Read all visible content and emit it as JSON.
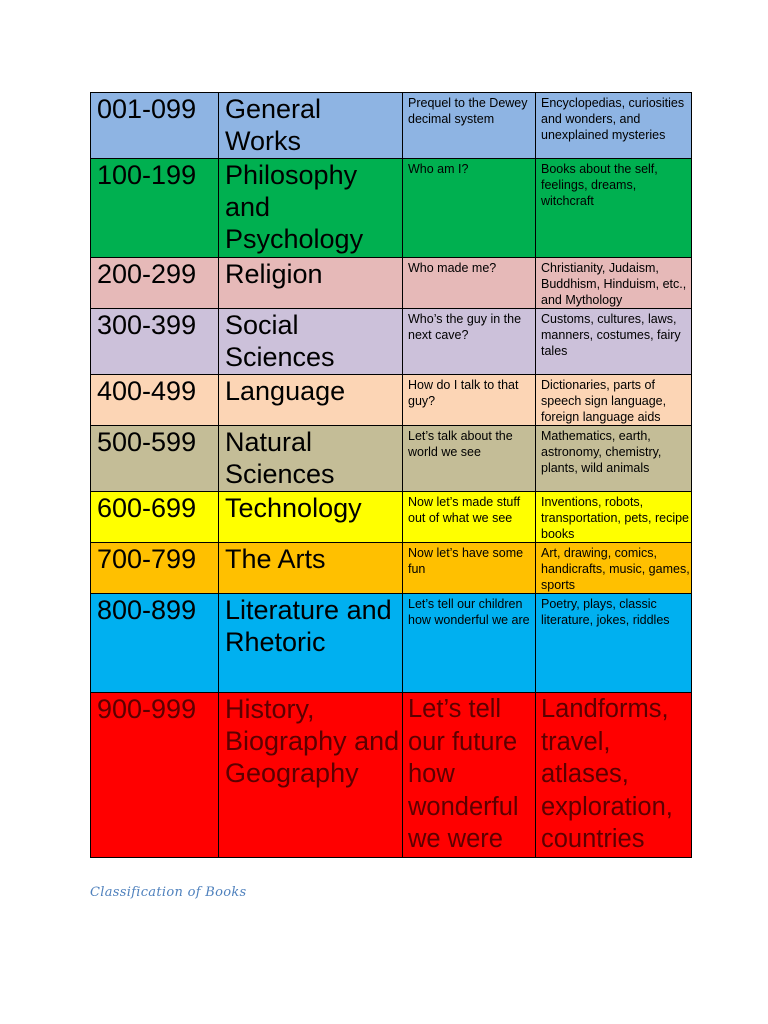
{
  "table": {
    "rows": [
      {
        "range": "001-099",
        "subject": "General Works",
        "question": "Prequel to the Dewey decimal system",
        "examples": "Encyclopedias, curiosities and wonders, and unexplained mysteries",
        "color": "#8eb4e3"
      },
      {
        "range": "100-199",
        "subject": "Philosophy and Psychology",
        "question": "Who am I?",
        "examples": "Books about the self, feelings, dreams, witchcraft",
        "color": "#00b050"
      },
      {
        "range": "200-299",
        "subject": "Religion",
        "question": "Who made me?",
        "examples": "Christianity, Judaism, Buddhism, Hinduism, etc., and Mythology",
        "color": "#e6b9b8"
      },
      {
        "range": "300-399",
        "subject": "Social Sciences",
        "question": "Who’s the guy in the next cave?",
        "examples": "Customs, cultures, laws, manners, costumes, fairy tales",
        "color": "#ccc1da"
      },
      {
        "range": "400-499",
        "subject": "Language",
        "question": "How do I talk to that guy?",
        "examples": "Dictionaries, parts of speech sign language, foreign language aids",
        "color": "#fcd5b5"
      },
      {
        "range": "500-599",
        "subject": "Natural Sciences",
        "question": "Let’s talk about the world we see",
        "examples": "Mathematics, earth, astronomy, chemistry, plants, wild animals",
        "color": "#c4bd97"
      },
      {
        "range": "600-699",
        "subject": "Technology",
        "question": "Now let’s made stuff out of what we see",
        "examples": "Inventions, robots, transportation, pets, recipe books",
        "color": "#ffff00"
      },
      {
        "range": "700-799",
        "subject": "The Arts",
        "question": "Now let’s have some fun",
        "examples": "Art, drawing, comics, handicrafts, music, games, sports",
        "color": "#ffc000"
      },
      {
        "range": "800-899",
        "subject": "Literature and Rhetoric",
        "question": "Let’s tell our children how wonderful we are",
        "examples": "Poetry, plays, classic literature, jokes, riddles",
        "color": "#00b0f0"
      },
      {
        "range": "900-999",
        "subject": "History, Biography and Geography",
        "question": "Let’s tell our future how wonderful we were",
        "examples": "Landforms, travel, atlases, exploration, countries",
        "color": "#ff0000"
      }
    ]
  },
  "caption": "Classification of Books"
}
